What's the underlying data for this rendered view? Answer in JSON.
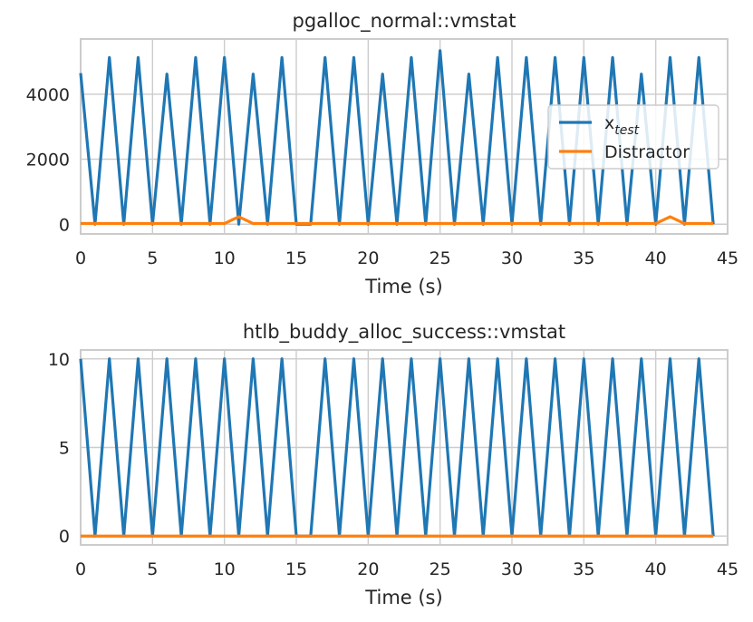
{
  "chart_data": [
    {
      "type": "line",
      "title": "pgalloc_normal::vmstat",
      "xlabel": "Time (s)",
      "ylabel": "",
      "xlim": [
        0,
        45
      ],
      "ylim": [
        -300,
        5700
      ],
      "xticks": [
        0,
        5,
        10,
        15,
        20,
        25,
        30,
        35,
        40,
        45
      ],
      "yticks": [
        0,
        2000,
        4000
      ],
      "grid": true,
      "legend": {
        "placement": "right",
        "entries": [
          "x",
          "Distractor"
        ],
        "subscript": "test"
      },
      "series": [
        {
          "name": "x_test",
          "color": "#1f77b4",
          "x": [
            0,
            1,
            2,
            3,
            4,
            5,
            6,
            7,
            8,
            9,
            10,
            11,
            12,
            13,
            14,
            15,
            16,
            17,
            18,
            19,
            20,
            21,
            22,
            23,
            24,
            25,
            26,
            27,
            28,
            29,
            30,
            31,
            32,
            33,
            34,
            35,
            36,
            37,
            38,
            39,
            40,
            41,
            42,
            43,
            44
          ],
          "y": [
            4650,
            0,
            5130,
            0,
            5130,
            0,
            4620,
            0,
            5130,
            0,
            5130,
            0,
            4620,
            0,
            5130,
            0,
            0,
            5130,
            0,
            5130,
            0,
            4620,
            0,
            5130,
            0,
            5340,
            0,
            4620,
            0,
            5130,
            0,
            5130,
            0,
            5130,
            0,
            5130,
            0,
            5130,
            0,
            4620,
            0,
            5130,
            0,
            5130,
            0
          ]
        },
        {
          "name": "Distractor",
          "color": "#ff7f0e",
          "x": [
            0,
            1,
            2,
            3,
            4,
            5,
            6,
            7,
            8,
            9,
            10,
            11,
            12,
            13,
            14,
            15,
            16,
            17,
            18,
            19,
            20,
            21,
            22,
            23,
            24,
            25,
            26,
            27,
            28,
            29,
            30,
            31,
            32,
            33,
            34,
            35,
            36,
            37,
            38,
            39,
            40,
            41,
            42,
            43,
            44
          ],
          "y": [
            20,
            20,
            20,
            20,
            20,
            20,
            20,
            20,
            20,
            20,
            20,
            230,
            20,
            20,
            20,
            20,
            20,
            20,
            20,
            20,
            20,
            20,
            20,
            20,
            20,
            20,
            20,
            20,
            20,
            20,
            20,
            20,
            20,
            20,
            20,
            20,
            20,
            20,
            20,
            20,
            20,
            230,
            20,
            20,
            20
          ]
        }
      ]
    },
    {
      "type": "line",
      "title": "htlb_buddy_alloc_success::vmstat",
      "xlabel": "Time (s)",
      "ylabel": "",
      "xlim": [
        0,
        45
      ],
      "ylim": [
        -0.5,
        10.5
      ],
      "xticks": [
        0,
        5,
        10,
        15,
        20,
        25,
        30,
        35,
        40,
        45
      ],
      "yticks": [
        0,
        5,
        10
      ],
      "grid": true,
      "series": [
        {
          "name": "x_test",
          "color": "#1f77b4",
          "x": [
            0,
            1,
            2,
            3,
            4,
            5,
            6,
            7,
            8,
            9,
            10,
            11,
            12,
            13,
            14,
            15,
            16,
            17,
            18,
            19,
            20,
            21,
            22,
            23,
            24,
            25,
            26,
            27,
            28,
            29,
            30,
            31,
            32,
            33,
            34,
            35,
            36,
            37,
            38,
            39,
            40,
            41,
            42,
            43,
            44
          ],
          "y": [
            10,
            0,
            10,
            0,
            10,
            0,
            10,
            0,
            10,
            0,
            10,
            0,
            10,
            0,
            10,
            0,
            0,
            10,
            0,
            10,
            0,
            10,
            0,
            10,
            0,
            10,
            0,
            10,
            0,
            10,
            0,
            10,
            0,
            10,
            0,
            10,
            0,
            10,
            0,
            10,
            0,
            10,
            0,
            10,
            0
          ]
        },
        {
          "name": "Distractor",
          "color": "#ff7f0e",
          "x": [
            0,
            44
          ],
          "y": [
            0,
            0
          ]
        }
      ]
    }
  ]
}
